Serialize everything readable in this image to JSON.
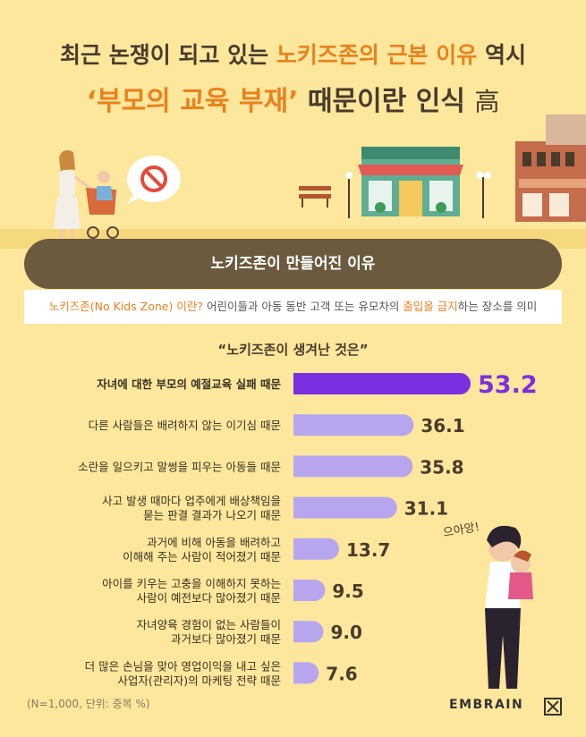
{
  "header": {
    "line1_pre": "최근 논쟁이 되고 있는 ",
    "line1_highlight": "노키즈존의 근본 이유",
    "line1_post": " 역시",
    "line2_highlight": "‘부모의 교육 부재’",
    "line2_post": " 때문이란 인식 ",
    "line2_badge": "高"
  },
  "scene": {
    "speech_icon": "no-entry-icon"
  },
  "banner": {
    "text": "노키즈존이 만들어진 이유"
  },
  "definition": {
    "term": "노키즈존(No Kids Zone) 이란?",
    "text_pre": " 어린이들과 아동 동반 고객 또는 유모차의 ",
    "text_highlight": "출입을 금지",
    "text_post": "하는 장소를 의미"
  },
  "illustration": {
    "exclamation": "으아앙!"
  },
  "chart_data": {
    "type": "bar",
    "orientation": "horizontal",
    "title": "“노키즈존이 생겨난 것은”",
    "categories": [
      [
        "자녀에 대한 부모의 예절교육 실패 때문"
      ],
      [
        "다른 사람들은 배려하지 않는 이기심 때문"
      ],
      [
        "소란을 일으키고 말썽을 피우는 아동들 때문"
      ],
      [
        "사고 발생 때마다 업주에게 배상책임을",
        "묻는 판결 결과가 나오기 때문"
      ],
      [
        "과거에 비해 아동을 배려하고",
        "이해해 주는 사람이 적어졌기 때문"
      ],
      [
        "아이를 키우는 고충을 이해하지 못하는",
        "사람이 예전보다 많아졌기 때문"
      ],
      [
        "자녀양육 경험이 없는 사람들이",
        "과거보다 많아졌기 때문"
      ],
      [
        "더 많은 손님을 맞아 영업이익을 내고 싶은",
        "사업자(관리자)의 마케팅 전략 때문"
      ]
    ],
    "values": [
      53.2,
      36.1,
      35.8,
      31.1,
      13.7,
      9.5,
      9.0,
      7.6
    ],
    "value_labels": [
      "53.2",
      "36.1",
      "35.8",
      "31.1",
      "13.7",
      "9.5",
      "9.0",
      "7.6"
    ],
    "colors": {
      "highlight": "#7B2FE0",
      "default": "#B7A6EE"
    }
  },
  "footer": {
    "note": "(N=1,000, 단위: 중복 %)",
    "brand": "EMBRAIN"
  }
}
